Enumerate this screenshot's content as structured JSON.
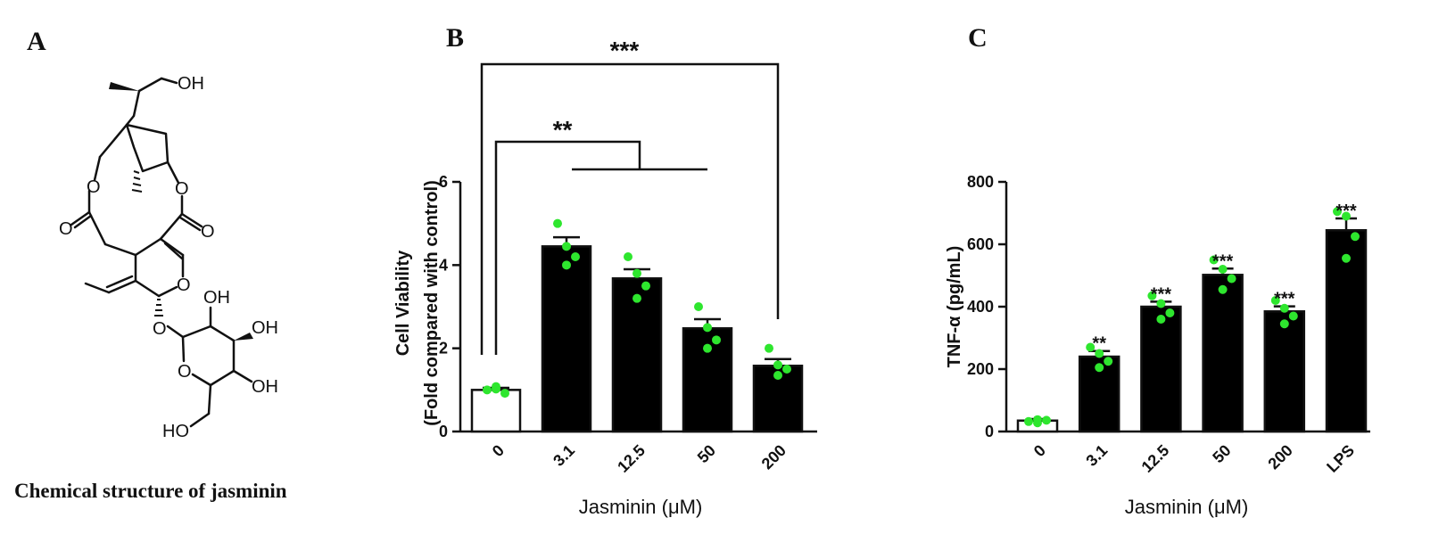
{
  "panels": {
    "a": {
      "letter": "A",
      "caption": "Chemical structure of jasminin",
      "atoms": {
        "oh_top": "OH",
        "o_ring_left": "O",
        "o_ring_right": "O",
        "o_carbonyl_left": "O",
        "o_carbonyl_right": "O",
        "o_pyran": "O",
        "o_glyco": "O",
        "oh_sugar_2": "OH",
        "oh_sugar_3": "OH",
        "oh_sugar_4": "OH",
        "o_sugar_ring": "O",
        "ho_sugar_6": "HO"
      }
    },
    "b": {
      "letter": "B"
    },
    "c": {
      "letter": "C"
    }
  },
  "colors": {
    "bar": "#000000",
    "control_bar": "#ffffff",
    "points": "#2ee62e",
    "ink": "#111111"
  },
  "chart_data": [
    {
      "id": "B",
      "type": "bar",
      "xlabel": "Jasminin (μM)",
      "ylabel": [
        "Cell Viability",
        "(Fold compared with control)"
      ],
      "categories": [
        "0",
        "3.1",
        "12.5",
        "50",
        "200"
      ],
      "values": [
        1.0,
        4.45,
        3.68,
        2.48,
        1.58
      ],
      "errors": [
        0.05,
        0.22,
        0.22,
        0.22,
        0.16
      ],
      "fills": [
        "white",
        "black",
        "black",
        "black",
        "black"
      ],
      "points": [
        [
          1.0,
          1.02,
          0.92,
          1.08
        ],
        [
          5.0,
          4.45,
          4.2,
          4.0
        ],
        [
          4.2,
          3.8,
          3.5,
          3.2
        ],
        [
          3.0,
          2.5,
          2.2,
          2.0
        ],
        [
          2.0,
          1.6,
          1.5,
          1.35
        ]
      ],
      "ylim": [
        0,
        6
      ],
      "yticks": [
        0,
        2,
        4,
        6
      ],
      "annotations": [
        {
          "label": "***",
          "from": 0,
          "to": [
            4
          ]
        },
        {
          "label": "**",
          "from": 0,
          "to": [
            1,
            2,
            3
          ]
        }
      ]
    },
    {
      "id": "C",
      "type": "bar",
      "xlabel": "Jasminin (μM)",
      "ylabel": "TNF-α (pg/mL)",
      "categories": [
        "0",
        "3.1",
        "12.5",
        "50",
        "200",
        "LPS"
      ],
      "values": [
        35,
        240,
        400,
        502,
        385,
        645
      ],
      "errors": [
        5,
        18,
        16,
        20,
        16,
        38
      ],
      "fills": [
        "white",
        "black",
        "black",
        "black",
        "black",
        "black"
      ],
      "points": [
        [
          32,
          38,
          36,
          28
        ],
        [
          270,
          250,
          225,
          205
        ],
        [
          435,
          410,
          380,
          360
        ],
        [
          550,
          520,
          490,
          455
        ],
        [
          420,
          395,
          370,
          345
        ],
        [
          705,
          690,
          625,
          555
        ]
      ],
      "significance": [
        "",
        "**",
        "***",
        "***",
        "***",
        "***"
      ],
      "ylim": [
        0,
        800
      ],
      "yticks": [
        0,
        200,
        400,
        600,
        800
      ]
    }
  ]
}
